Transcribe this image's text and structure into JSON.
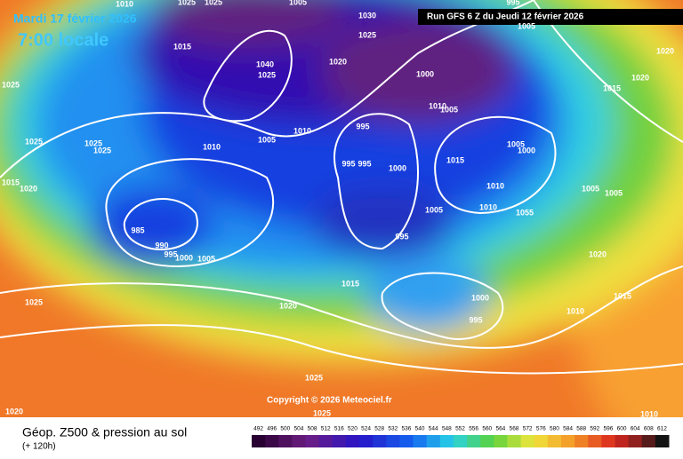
{
  "header": {
    "valid_date": "Mardi 17 février 2026",
    "local_time": "7:00 locale",
    "run": "Run GFS 6 Z du Jeudi 12 février 2026"
  },
  "map": {
    "isobar_labels": [
      "1010",
      "1025",
      "1025",
      "1005",
      "995",
      "1005",
      "1030",
      "1025",
      "1020",
      "1015",
      "1025",
      "1020",
      "1020",
      "1015",
      "1000",
      "1010",
      "1005",
      "995",
      "1005",
      "1010",
      "1010",
      "1025",
      "1025",
      "1025",
      "1015",
      "1020",
      "1015",
      "1005",
      "1000",
      "995",
      "995",
      "1000",
      "1010",
      "1005",
      "1005",
      "1005",
      "1010",
      "985",
      "990",
      "995",
      "1000",
      "1005",
      "995",
      "1020",
      "1015",
      "1020",
      "1000",
      "995",
      "1010",
      "1015",
      "1025",
      "1025",
      "1025",
      "1020",
      "1010",
      "1025",
      "1040",
      "1055"
    ]
  },
  "copyright": "Copyright © 2026 Meteociel.fr",
  "legend": {
    "title": "Géop. Z500 & pression au sol",
    "lead_time": "(+ 120h)",
    "scale_labels": [
      "492",
      "496",
      "500",
      "504",
      "508",
      "512",
      "516",
      "520",
      "524",
      "528",
      "532",
      "536",
      "540",
      "544",
      "548",
      "552",
      "556",
      "560",
      "564",
      "568",
      "572",
      "576",
      "580",
      "584",
      "588",
      "592",
      "596",
      "600",
      "604",
      "608",
      "612"
    ]
  }
}
